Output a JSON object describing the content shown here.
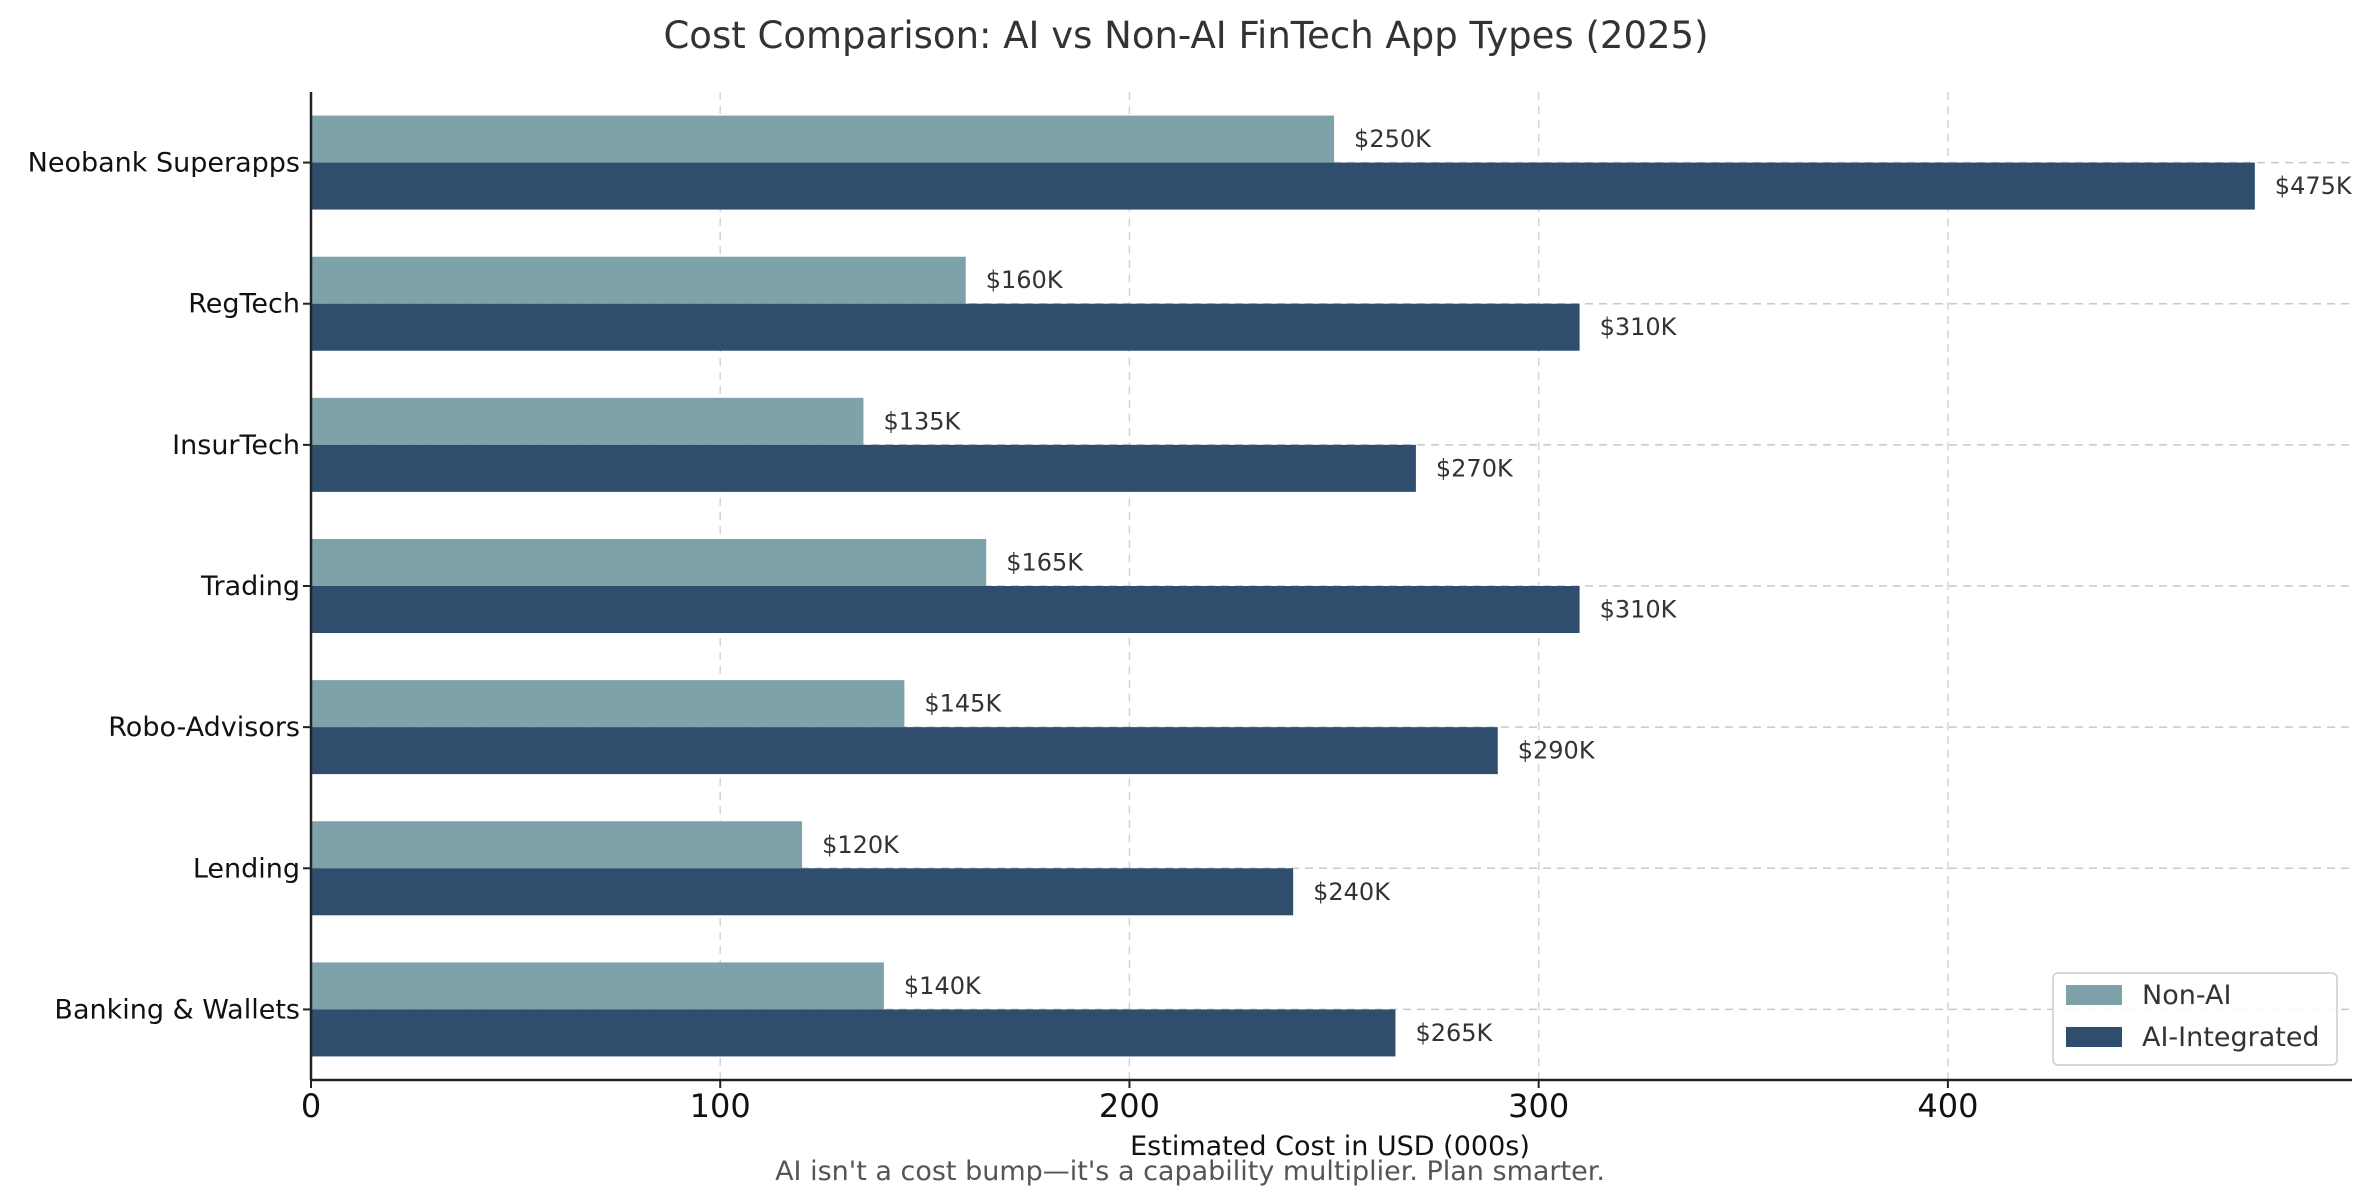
{
  "chart_data": {
    "type": "bar",
    "orientation": "horizontal",
    "title": "Cost Comparison: AI vs Non-AI FinTech App Types (2025)",
    "xlabel": "Estimated Cost in USD (000s)",
    "ylabel": "",
    "footnote": "AI isn't a cost bump—it's a capability multiplier. Plan smarter.",
    "categories": [
      "Neobank Superapps",
      "RegTech",
      "InsurTech",
      "Trading",
      "Robo-Advisors",
      "Lending",
      "Banking & Wallets"
    ],
    "series": [
      {
        "name": "Non-AI",
        "color": "#7ea2a9",
        "values": [
          250,
          160,
          135,
          165,
          145,
          120,
          140
        ],
        "labels": [
          "$250K",
          "$160K",
          "$135K",
          "$165K",
          "$145K",
          "$120K",
          "$140K"
        ]
      },
      {
        "name": "AI-Integrated",
        "color": "#2f4d6d",
        "values": [
          475,
          310,
          270,
          310,
          290,
          240,
          265
        ],
        "labels": [
          "$475K",
          "$310K",
          "$270K",
          "$310K",
          "$290K",
          "$240K",
          "$265K"
        ]
      }
    ],
    "xlim": [
      0,
      498.75
    ],
    "xticks": [
      0,
      100,
      200,
      300,
      400
    ],
    "xtick_labels": [
      "0",
      "100",
      "200",
      "300",
      "400"
    ],
    "grid": true,
    "legend_position": "bottom-right"
  }
}
